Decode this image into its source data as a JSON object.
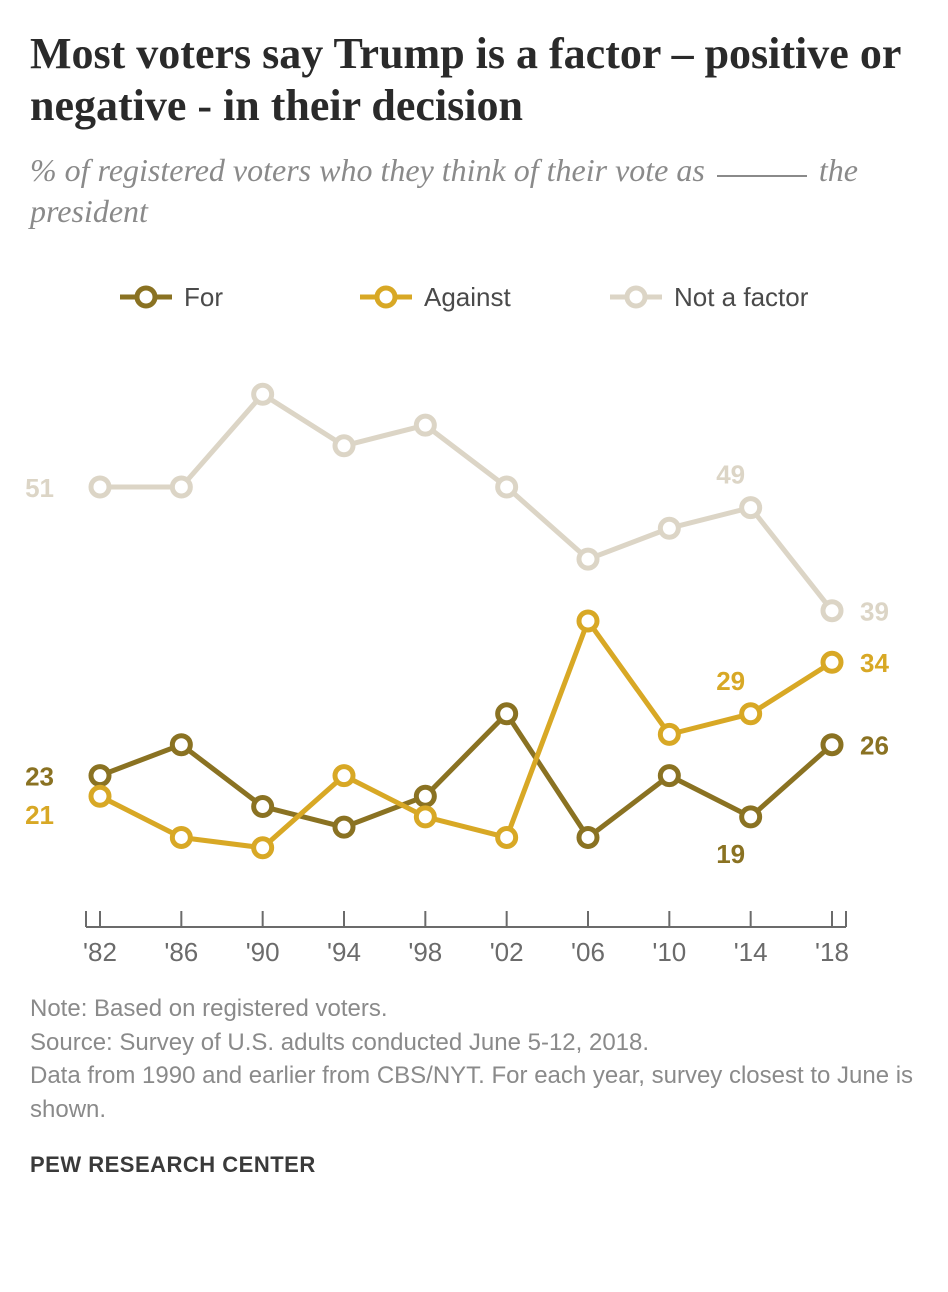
{
  "header": {
    "title": "Most voters say Trump is a factor – positive or negative - in their decision",
    "subtitle_pre": "% of registered voters who they think of their vote as",
    "subtitle_post": "the president"
  },
  "chart": {
    "type": "line",
    "background_color": "#ffffff",
    "legend": {
      "position": "top",
      "fontsize": 26,
      "items": [
        "For",
        "Against",
        "Not a factor"
      ]
    },
    "x": {
      "years": [
        1982,
        1986,
        1990,
        1994,
        1998,
        2002,
        2006,
        2010,
        2014,
        2018
      ],
      "tick_labels": [
        "'82",
        "'86",
        "'90",
        "'94",
        "'98",
        "'02",
        "'06",
        "'10",
        "'14",
        "'18"
      ]
    },
    "y": {
      "lim": [
        12,
        64
      ]
    },
    "line_width": 5,
    "marker": {
      "style": "circle",
      "radius": 9,
      "fill": "#ffffff",
      "stroke_width": 5
    },
    "axis": {
      "color": "#6b6b6b",
      "tick_length": 16,
      "axis_width": 2
    },
    "series": {
      "for": {
        "color": "#8a7222",
        "values": [
          23,
          26,
          20,
          18,
          21,
          29,
          17,
          23,
          19,
          26
        ],
        "labels": [
          {
            "i": 0,
            "text": "23",
            "dx": -46,
            "dy": 10
          },
          {
            "i": 8,
            "text": "19",
            "dx": -20,
            "dy": 46
          },
          {
            "i": 9,
            "text": "26",
            "dx": 28,
            "dy": 10
          }
        ]
      },
      "against": {
        "color": "#d8a825",
        "values": [
          21,
          17,
          16,
          23,
          19,
          17,
          38,
          27,
          29,
          34
        ],
        "labels": [
          {
            "i": 0,
            "text": "21",
            "dx": -46,
            "dy": 28
          },
          {
            "i": 8,
            "text": "29",
            "dx": -20,
            "dy": -24
          },
          {
            "i": 9,
            "text": "34",
            "dx": 28,
            "dy": 10
          }
        ]
      },
      "notfactor": {
        "color": "#dcd5c6",
        "values": [
          51,
          51,
          60,
          55,
          57,
          51,
          44,
          47,
          49,
          39
        ],
        "labels": [
          {
            "i": 0,
            "text": "51",
            "dx": -46,
            "dy": 10
          },
          {
            "i": 8,
            "text": "49",
            "dx": -20,
            "dy": -24
          },
          {
            "i": 9,
            "text": "39",
            "dx": 28,
            "dy": 10
          }
        ]
      }
    }
  },
  "notes": {
    "line1": "Note: Based on registered voters.",
    "line2": "Source: Survey of U.S. adults conducted June 5-12, 2018.",
    "line3": "Data from 1990 and earlier from CBS/NYT. For each year, survey closest to June is shown."
  },
  "footer": {
    "org": "PEW RESEARCH CENTER"
  }
}
